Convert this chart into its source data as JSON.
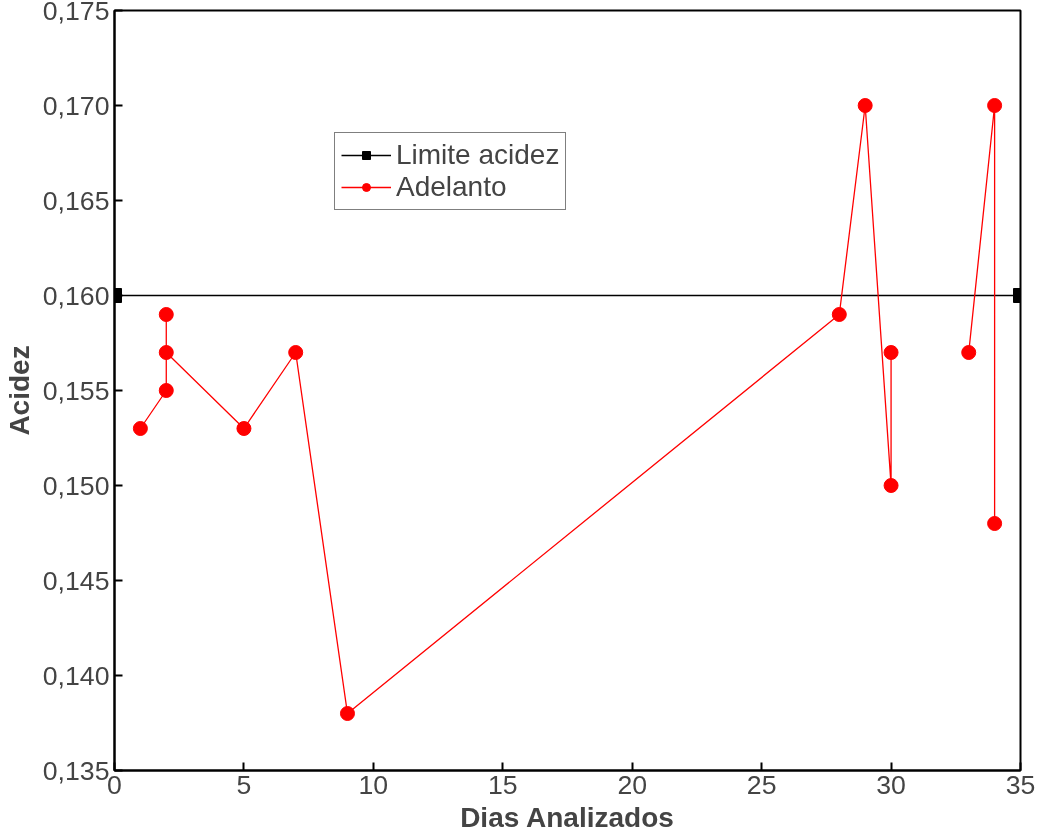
{
  "chart_data": {
    "type": "line",
    "xlabel": "Dias Analizados",
    "ylabel": "Acidez",
    "xlim": [
      0,
      35
    ],
    "xticks": [
      0,
      5,
      10,
      15,
      20,
      25,
      30,
      35
    ],
    "ylim": [
      0.135,
      0.175
    ],
    "yticks": [
      {
        "value": 0.135,
        "label": "0,135"
      },
      {
        "value": 0.14,
        "label": "0,140"
      },
      {
        "value": 0.145,
        "label": "0,145"
      },
      {
        "value": 0.15,
        "label": "0,150"
      },
      {
        "value": 0.155,
        "label": "0,155"
      },
      {
        "value": 0.16,
        "label": "0,160"
      },
      {
        "value": 0.165,
        "label": "0,165"
      },
      {
        "value": 0.17,
        "label": "0,170"
      },
      {
        "value": 0.175,
        "label": "0,175"
      }
    ],
    "grid": false,
    "legend": "top",
    "series": [
      {
        "name": "Limite acidez",
        "color": "#000000",
        "marker": "square",
        "x": [
          0,
          35
        ],
        "values": [
          0.16,
          0.16
        ]
      },
      {
        "name": "Adelanto",
        "color": "#ff0000",
        "marker": "circle",
        "x": [
          1,
          2,
          2,
          2,
          5,
          7,
          9,
          28,
          29,
          30,
          30,
          32,
          33,
          34,
          34
        ],
        "values": [
          0.153,
          0.155,
          0.159,
          0.157,
          0.153,
          0.157,
          0.138,
          0.159,
          0.17,
          0.15,
          0.157,
          null,
          0.157,
          0.17,
          0.148
        ]
      }
    ]
  }
}
